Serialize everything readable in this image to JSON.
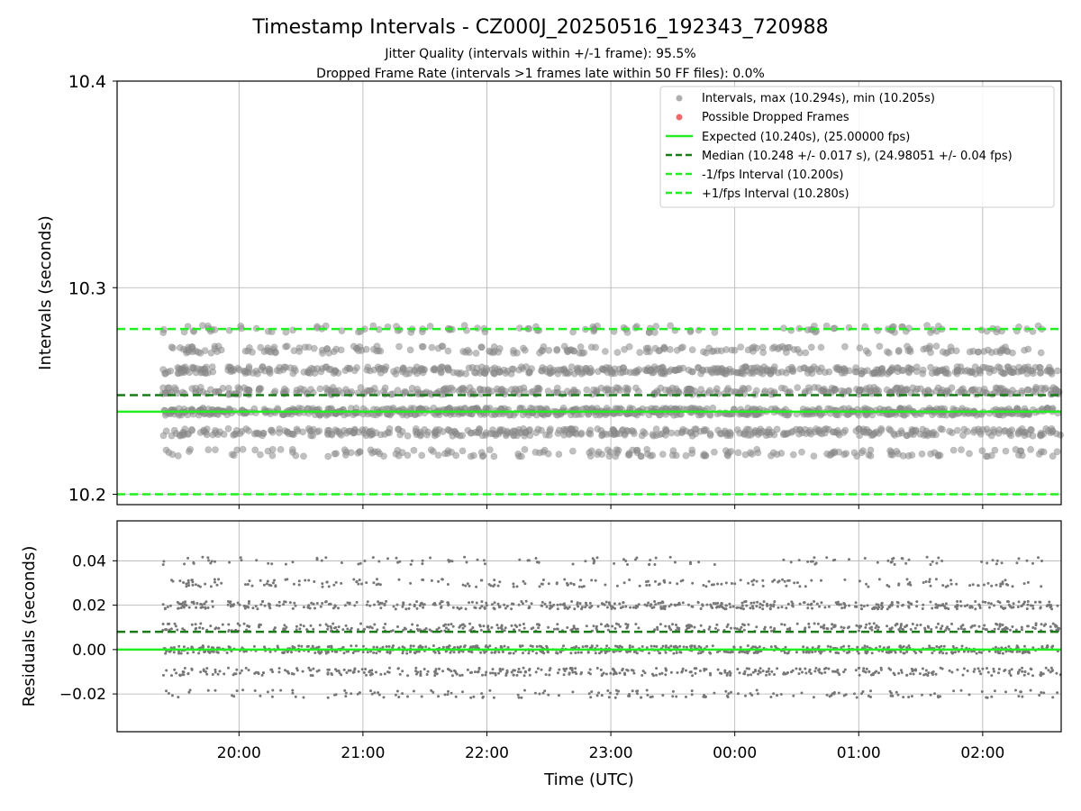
{
  "chart_data": [
    {
      "type": "scatter",
      "title": "Timestamp Intervals - CZ000J_20250516_192343_720988",
      "subtitle_1": "Jitter Quality (intervals within +/-1 frame): 95.5%",
      "subtitle_2": "Dropped Frame Rate (intervals >1 frames late within 50 FF files): 0.0%",
      "ylabel": "Intervals (seconds)",
      "ylim": [
        10.195,
        10.4
      ],
      "yticks": [
        "10.2",
        "10.3",
        "10.4"
      ],
      "xlim": [
        "2025-05-16T19:01",
        "2025-05-17T02:38"
      ],
      "x_range_data": [
        "2025-05-16T19:23",
        "2025-05-17T02:38"
      ],
      "grid": true,
      "legend_position": "top-right",
      "legend": [
        "Intervals, max (10.294s), min (10.205s)",
        "Possible Dropped Frames",
        "Expected (10.240s), (25.00000 fps)",
        "Median (10.248 +/- 0.017 s), (24.98051 +/- 0.04 fps)",
        "-1/fps Interval (10.200s)",
        "+1/fps Interval (10.280s)"
      ],
      "series": [
        {
          "name": "Intervals, max (10.294s), min (10.205s)",
          "color": "#8c8c8c",
          "count_points": 2550,
          "levels": [
            10.22,
            10.23,
            10.24,
            10.25,
            10.26,
            10.27,
            10.28
          ],
          "level_weights": [
            0.07,
            0.17,
            0.28,
            0.17,
            0.19,
            0.08,
            0.04
          ],
          "max": 10.294,
          "min": 10.205
        },
        {
          "name": "Possible Dropped Frames",
          "color": "#f06a6a",
          "values": []
        }
      ],
      "lines": [
        {
          "name": "Expected (10.240s), (25.00000 fps)",
          "y": 10.24,
          "color": "#22ee22",
          "style": "solid"
        },
        {
          "name": "Median (10.248 +/- 0.017 s), (24.98051 +/- 0.04 fps)",
          "y": 10.248,
          "color": "#1a7a1a",
          "style": "dashed"
        },
        {
          "name": "-1/fps Interval (10.200s)",
          "y": 10.2,
          "color": "#22ee22",
          "style": "dashed"
        },
        {
          "name": "+1/fps Interval (10.280s)",
          "y": 10.28,
          "color": "#22ee22",
          "style": "dashed"
        }
      ]
    },
    {
      "type": "scatter",
      "ylabel": "Residuals (seconds)",
      "xlabel": "Time (UTC)",
      "ylim": [
        -0.037,
        0.058
      ],
      "yticks": [
        "0.04",
        "0.02",
        "0.00",
        "−0.02"
      ],
      "ytick_values": [
        0.04,
        0.02,
        0.0,
        -0.02
      ],
      "xticks": [
        "20:00",
        "21:00",
        "22:00",
        "23:00",
        "00:00",
        "01:00",
        "02:00"
      ],
      "grid": true,
      "series": [
        {
          "color": "#777777",
          "count_points": 2550,
          "levels": [
            -0.02,
            -0.01,
            0.0,
            0.01,
            0.02,
            0.03,
            0.04
          ],
          "level_weights": [
            0.07,
            0.17,
            0.28,
            0.17,
            0.19,
            0.08,
            0.04
          ]
        }
      ],
      "lines": [
        {
          "y": 0.0,
          "color": "#22ee22",
          "style": "solid"
        },
        {
          "y": 0.008,
          "color": "#1a7a1a",
          "style": "dashed"
        }
      ]
    }
  ]
}
